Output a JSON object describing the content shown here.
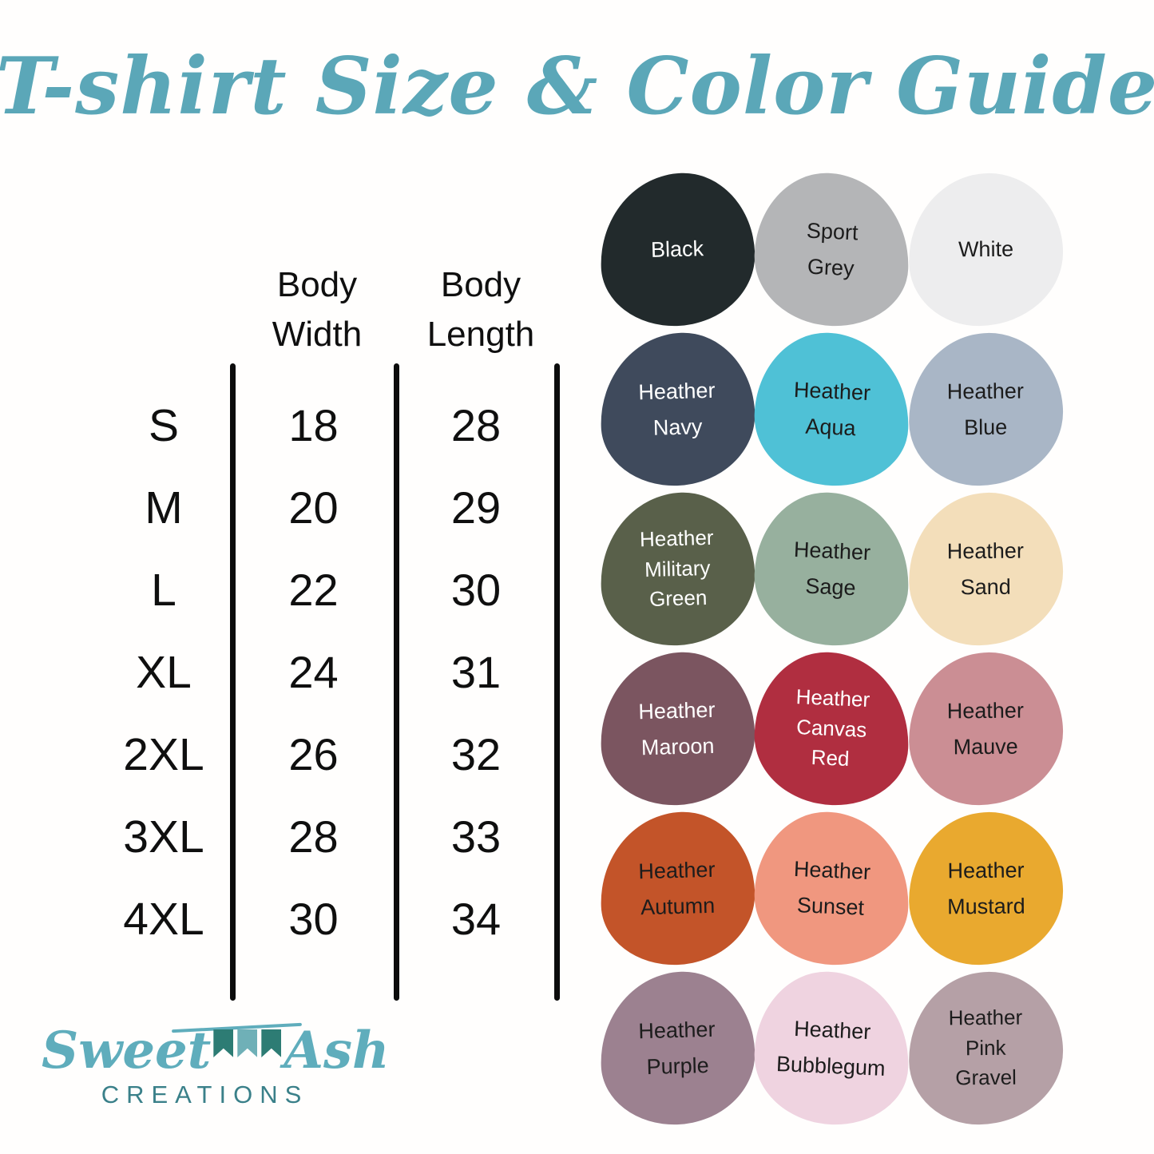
{
  "title": "T-shirt Size & Color Guide",
  "size_table": {
    "headers": [
      "Body\nWidth",
      "Body\nLength"
    ],
    "rows": [
      {
        "size": "S",
        "width": "18",
        "length": "28"
      },
      {
        "size": "M",
        "width": "20",
        "length": "29"
      },
      {
        "size": "L",
        "width": "22",
        "length": "30"
      },
      {
        "size": "XL",
        "width": "24",
        "length": "31"
      },
      {
        "size": "2XL",
        "width": "26",
        "length": "32"
      },
      {
        "size": "3XL",
        "width": "28",
        "length": "33"
      },
      {
        "size": "4XL",
        "width": "30",
        "length": "34"
      }
    ]
  },
  "colors": [
    {
      "name": "Black",
      "label": "Black",
      "hex": "#222a2c",
      "text": "#ffffff"
    },
    {
      "name": "Sport Grey",
      "label": "Sport\nGrey",
      "hex": "#b4b5b7",
      "text": "#1c1c1c"
    },
    {
      "name": "White",
      "label": "White",
      "hex": "#ededee",
      "text": "#1c1c1c"
    },
    {
      "name": "Heather Navy",
      "label": "Heather\nNavy",
      "hex": "#3f4a5c",
      "text": "#ffffff"
    },
    {
      "name": "Heather Aqua",
      "label": "Heather\nAqua",
      "hex": "#4fc1d6",
      "text": "#1c1c1c"
    },
    {
      "name": "Heather Blue",
      "label": "Heather\nBlue",
      "hex": "#a9b6c6",
      "text": "#1c1c1c"
    },
    {
      "name": "Heather Military Green",
      "label": "Heather\nMilitary\nGreen",
      "hex": "#59604a",
      "text": "#ffffff"
    },
    {
      "name": "Heather Sage",
      "label": "Heather\nSage",
      "hex": "#97b09e",
      "text": "#1c1c1c"
    },
    {
      "name": "Heather Sand",
      "label": "Heather\nSand",
      "hex": "#f3deba",
      "text": "#1c1c1c"
    },
    {
      "name": "Heather Maroon",
      "label": "Heather\nMaroon",
      "hex": "#7b5560",
      "text": "#ffffff"
    },
    {
      "name": "Heather Canvas Red",
      "label": "Heather\nCanvas\nRed",
      "hex": "#b02e40",
      "text": "#ffffff"
    },
    {
      "name": "Heather Mauve",
      "label": "Heather\nMauve",
      "hex": "#cb8e94",
      "text": "#1c1c1c"
    },
    {
      "name": "Heather Autumn",
      "label": "Heather\nAutumn",
      "hex": "#c35429",
      "text": "#1c1c1c"
    },
    {
      "name": "Heather Sunset",
      "label": "Heather\nSunset",
      "hex": "#f0977f",
      "text": "#1c1c1c"
    },
    {
      "name": "Heather Mustard",
      "label": "Heather\nMustard",
      "hex": "#e9a92f",
      "text": "#1c1c1c"
    },
    {
      "name": "Heather Purple",
      "label": "Heather\nPurple",
      "hex": "#9c8190",
      "text": "#1c1c1c"
    },
    {
      "name": "Heather Bubblegum",
      "label": "Heather\nBubblegum",
      "hex": "#efd3e0",
      "text": "#1c1c1c"
    },
    {
      "name": "Heather Pink Gravel",
      "label": "Heather\nPink\nGravel",
      "hex": "#b5a0a6",
      "text": "#1c1c1c"
    }
  ],
  "logo": {
    "script_1": "Sweet",
    "script_2": "Ash",
    "subtext": "CREATIONS"
  },
  "palette": {
    "title_teal": "#5ba7b8",
    "logo_script_teal": "#5fadbc",
    "logo_subtext_teal": "#3a8089",
    "flag_dark_teal": "#2d7c74",
    "flag_light_teal": "#6fb0b7",
    "table_ink": "#0f0f0f"
  }
}
